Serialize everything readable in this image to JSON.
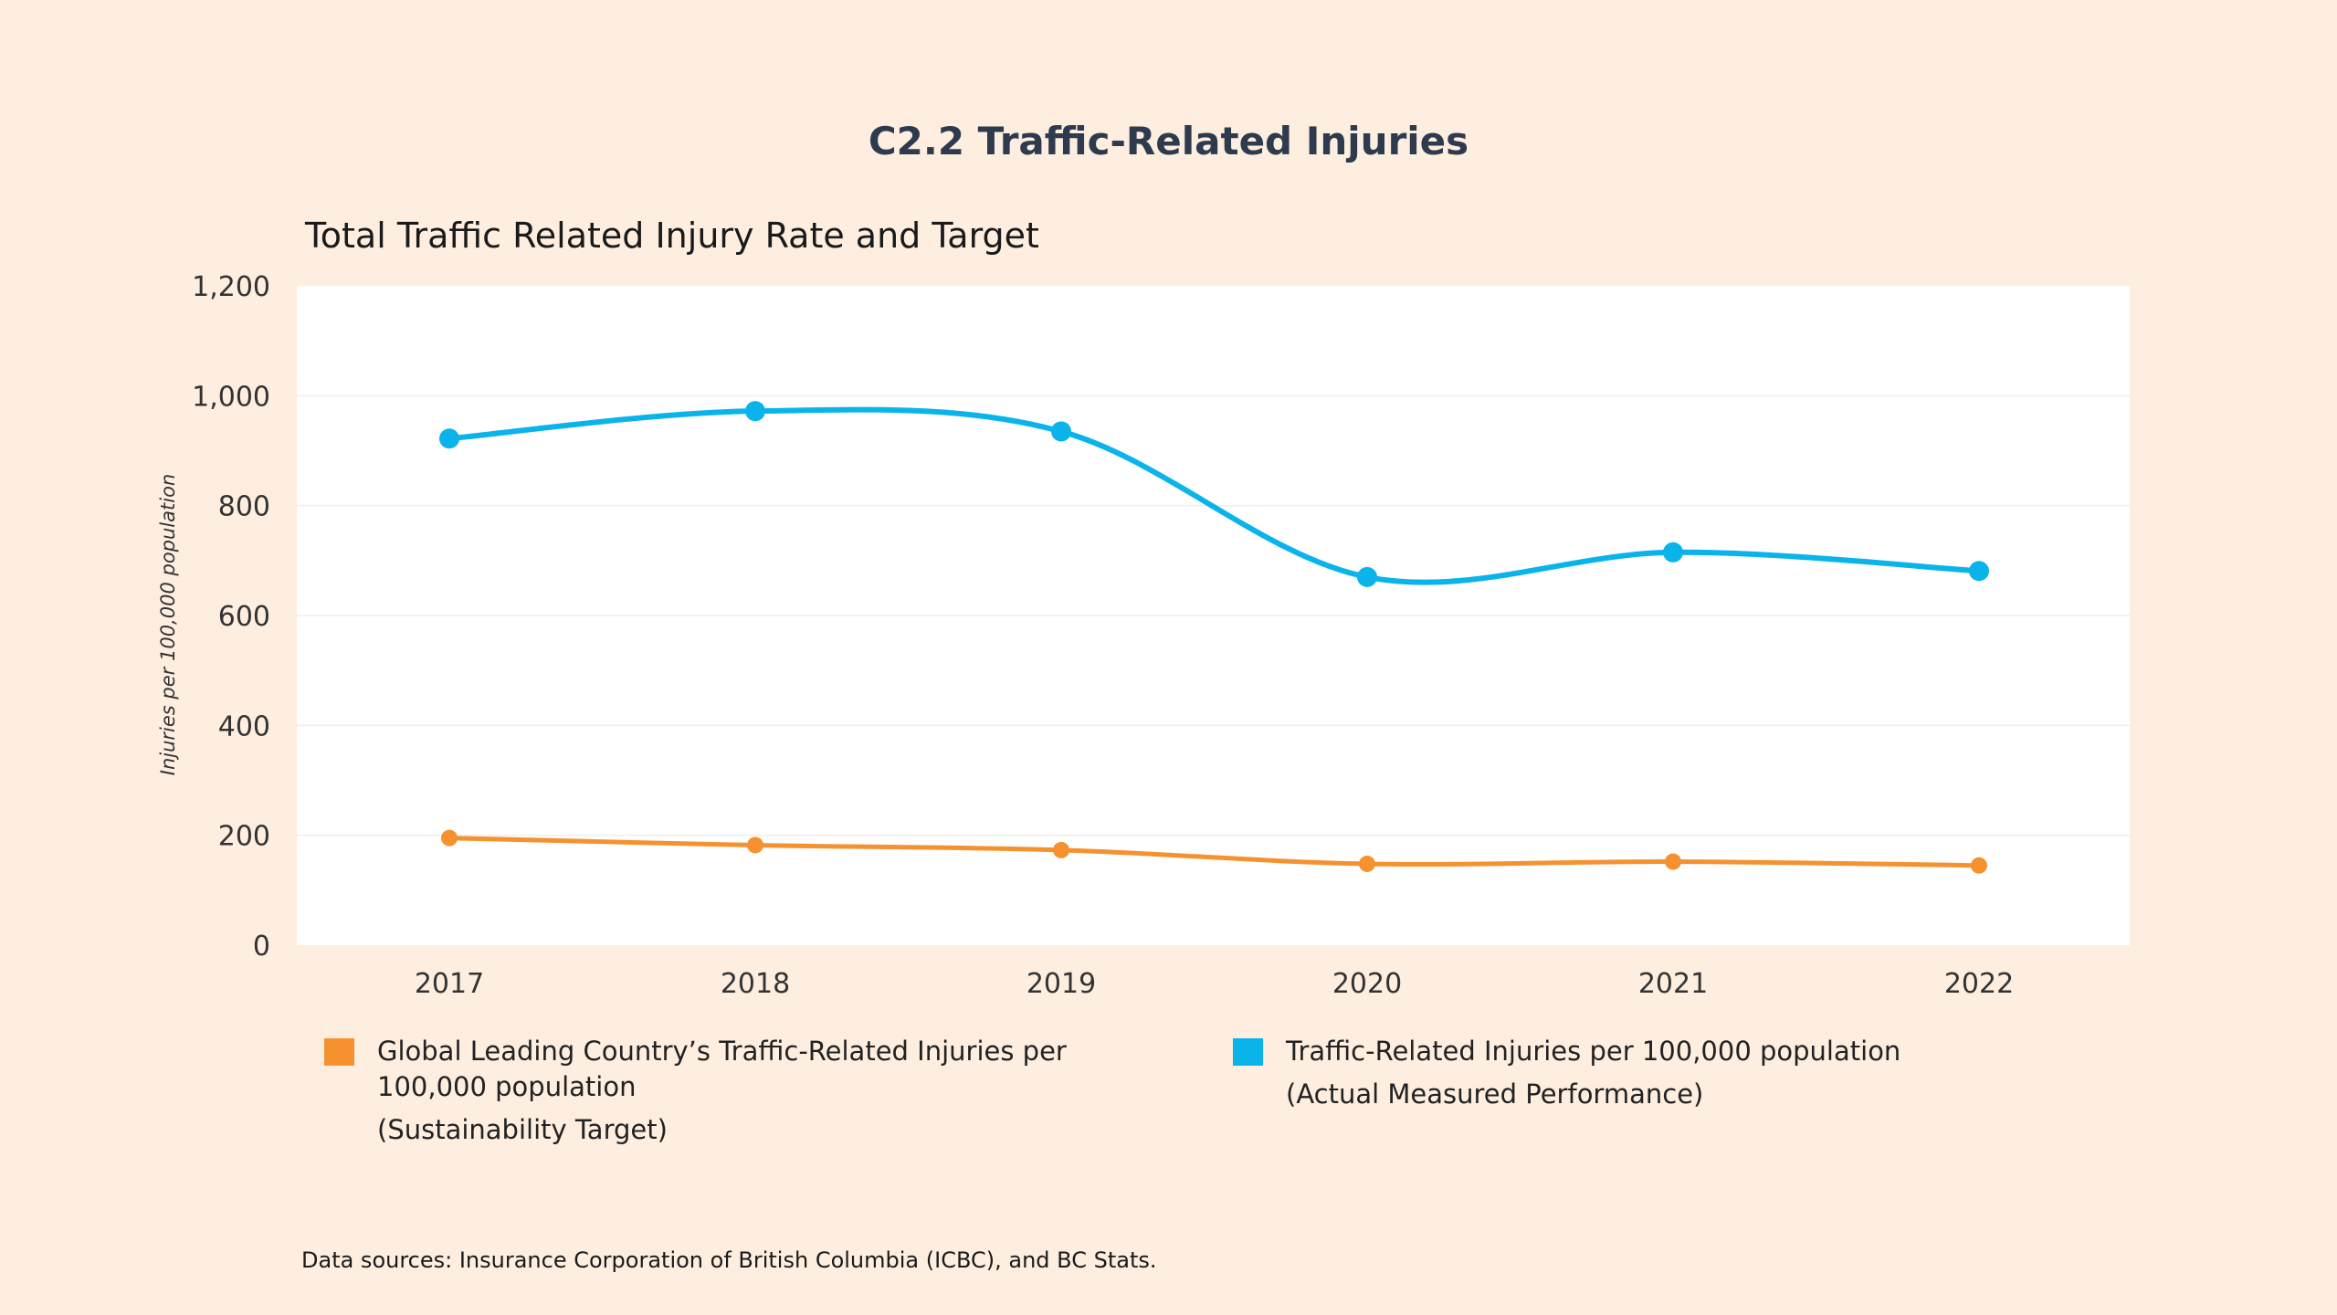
{
  "page": {
    "title": "C2.2 Traffic-Related Injuries",
    "source": "Data sources: Insurance Corporation of British Columbia (ICBC), and BC Stats."
  },
  "legend": {
    "items": [
      {
        "label": "Global Leading Country’s Traffic-Related Injuries per 100,000 population",
        "sub": "(Sustainability Target)",
        "color": "#F5922F"
      },
      {
        "label": "Traffic-Related Injuries per 100,000 population",
        "sub": "(Actual Measured Performance)",
        "color": "#0AB4EA"
      }
    ]
  },
  "chart_data": {
    "type": "line",
    "title": "Total Traffic Related Injury Rate and Target",
    "xlabel": "",
    "ylabel": "Injuries per 100,000 population",
    "ylim": [
      0,
      1200
    ],
    "yticks": [
      0,
      200,
      400,
      600,
      800,
      1000,
      1200
    ],
    "ytick_labels": [
      "0",
      "200",
      "400",
      "600",
      "800",
      "1,000",
      "1,200"
    ],
    "categories": [
      "2017",
      "2018",
      "2019",
      "2020",
      "2021",
      "2022"
    ],
    "grid": true,
    "legend_position": "bottom",
    "series": [
      {
        "name": "Global Leading Country’s Traffic-Related Injuries per 100,000 population (Sustainability Target)",
        "color": "#F5922F",
        "values": [
          195,
          182,
          173,
          148,
          152,
          145
        ]
      },
      {
        "name": "Traffic-Related Injuries per 100,000 population (Actual Measured Performance)",
        "color": "#0AB4EA",
        "values": [
          922,
          972,
          935,
          670,
          715,
          681
        ]
      }
    ]
  }
}
